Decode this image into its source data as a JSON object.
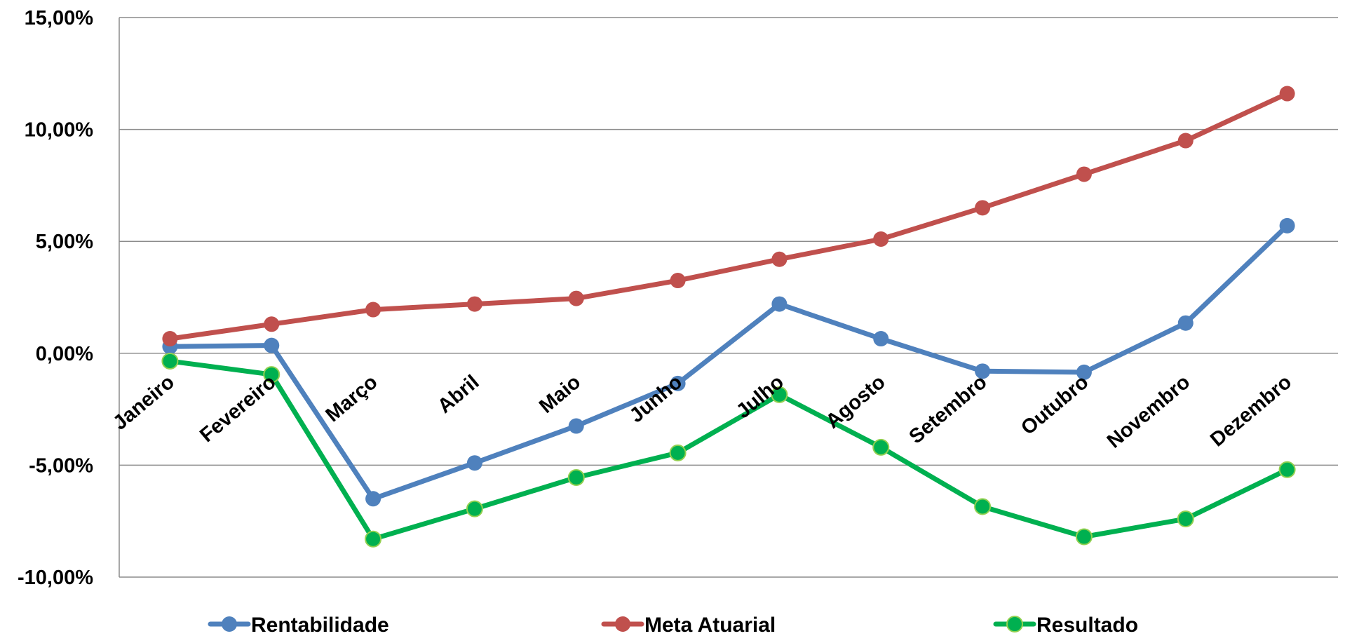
{
  "chart_data": {
    "type": "line",
    "categories": [
      "Janeiro",
      "Fevereiro",
      "Março",
      "Abril",
      "Maio",
      "Junho",
      "Julho",
      "Agosto",
      "Setembro",
      "Outubro",
      "Novembro",
      "Dezembro"
    ],
    "series": [
      {
        "name": "Rentabilidade",
        "color": "#4F81BD",
        "values": [
          0.3,
          0.35,
          -6.5,
          -4.9,
          -3.25,
          -1.35,
          2.2,
          0.65,
          -0.8,
          -0.85,
          1.35,
          5.7
        ]
      },
      {
        "name": "Meta Atuarial",
        "color": "#C0504D",
        "values": [
          0.65,
          1.3,
          1.95,
          2.2,
          2.45,
          3.25,
          4.2,
          5.1,
          6.5,
          8.0,
          9.5,
          11.6
        ]
      },
      {
        "name": "Resultado",
        "color": "#00B050",
        "values": [
          -0.35,
          -0.95,
          -8.3,
          -6.95,
          -5.55,
          -4.45,
          -1.85,
          -4.2,
          -6.85,
          -8.2,
          -7.4,
          -5.2
        ]
      }
    ],
    "ylim": [
      -10,
      15
    ],
    "yticks": [
      15,
      10,
      5,
      0,
      -5,
      -10
    ],
    "ytick_labels": [
      "15,00%",
      "10,00%",
      "5,00%",
      "0,00%",
      "-5,00%",
      "-10,00%"
    ],
    "grid": true,
    "legend": "bottom",
    "title": "",
    "xlabel": "",
    "ylabel": ""
  }
}
